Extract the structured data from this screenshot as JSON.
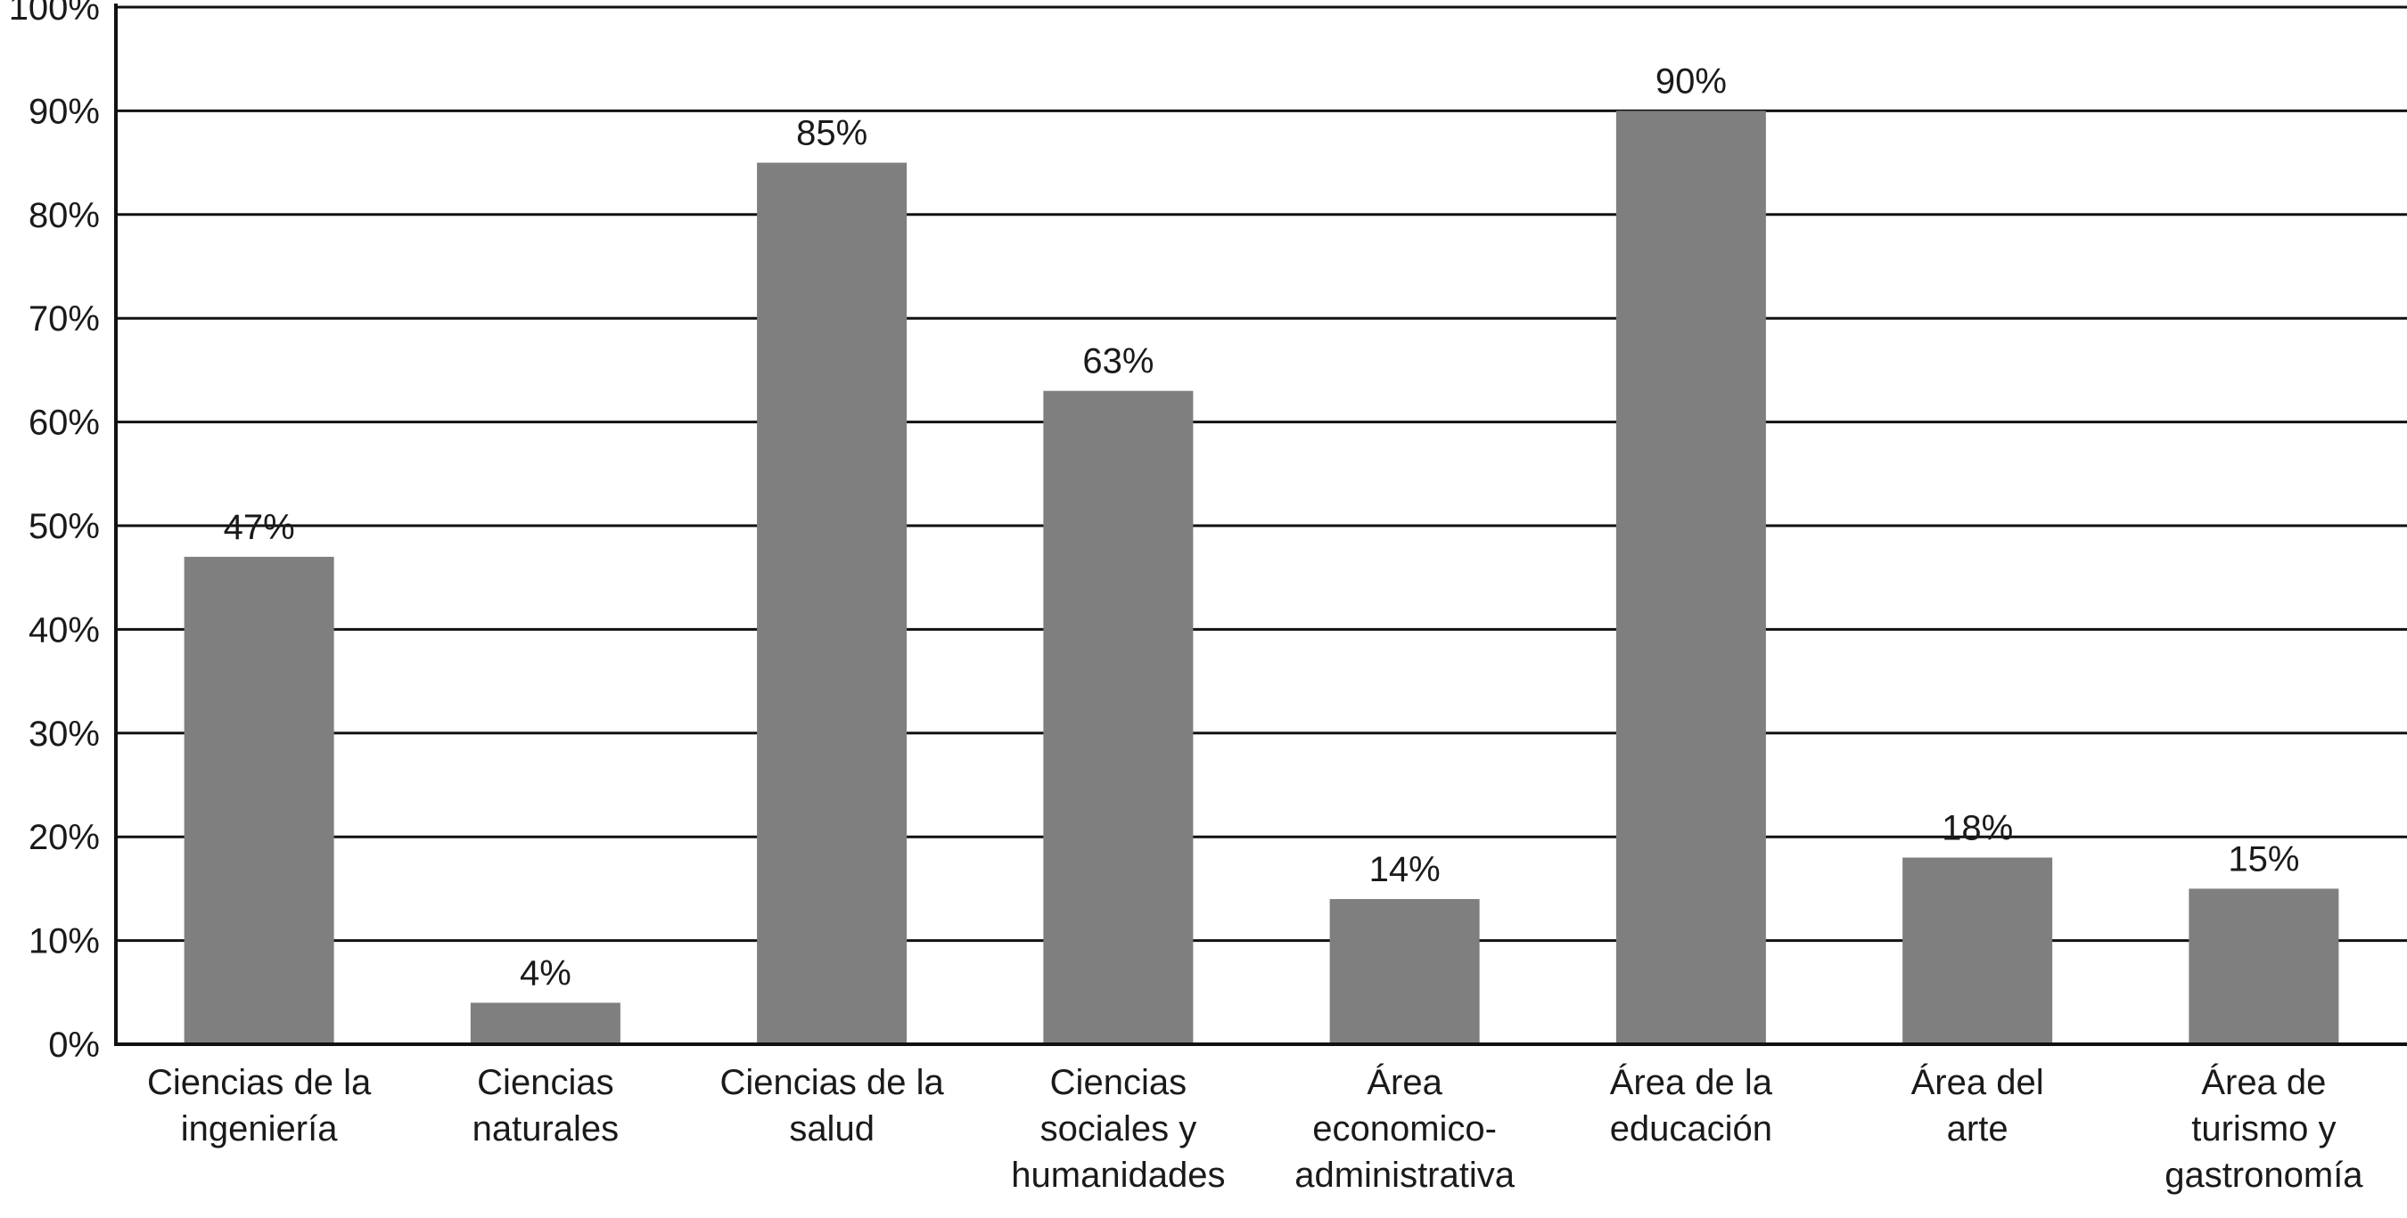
{
  "chart_data": {
    "type": "bar",
    "categories": [
      [
        "Ciencias de la",
        "ingeniería"
      ],
      [
        "Ciencias",
        "naturales"
      ],
      [
        "Ciencias de la",
        "salud"
      ],
      [
        "Ciencias",
        "sociales y",
        "humanidades"
      ],
      [
        "Área",
        "economico-",
        "administrativa"
      ],
      [
        "Área de la",
        "educación"
      ],
      [
        "Área del",
        "arte"
      ],
      [
        "Área de",
        "turismo y",
        "gastronomía"
      ]
    ],
    "values": [
      47,
      4,
      85,
      63,
      14,
      90,
      18,
      15
    ],
    "value_labels": [
      "47%",
      "4%",
      "85%",
      "63%",
      "14%",
      "90%",
      "18%",
      "15%"
    ],
    "y_ticks": [
      "0%",
      "10%",
      "20%",
      "30%",
      "40%",
      "50%",
      "60%",
      "70%",
      "80%",
      "90%",
      "100%"
    ],
    "ylim": [
      0,
      100
    ],
    "grid": true,
    "bar_color": "#7f7f80",
    "title": "",
    "xlabel": "",
    "ylabel": ""
  }
}
